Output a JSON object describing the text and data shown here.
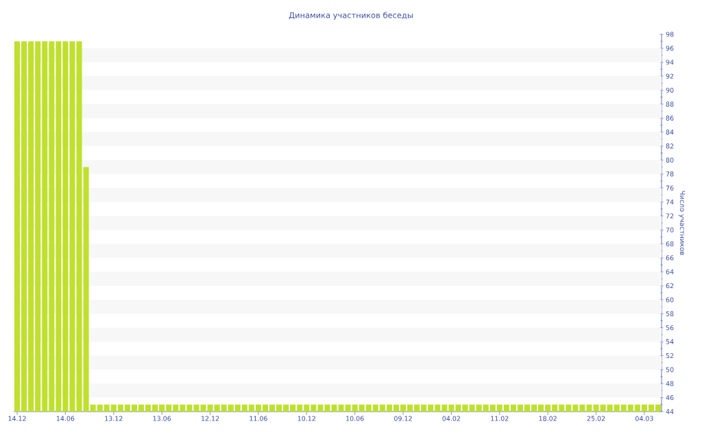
{
  "chart_data": {
    "type": "bar",
    "title": "Динамика участников беседы",
    "ylabel": "Число участников",
    "categories": [
      "14.12",
      null,
      null,
      null,
      null,
      null,
      null,
      "14.06",
      null,
      null,
      null,
      null,
      null,
      null,
      "13.12",
      null,
      null,
      null,
      null,
      null,
      null,
      "13.06",
      null,
      null,
      null,
      null,
      null,
      null,
      "12.12",
      null,
      null,
      null,
      null,
      null,
      null,
      "11.06",
      null,
      null,
      null,
      null,
      null,
      null,
      "10.12",
      null,
      null,
      null,
      null,
      null,
      null,
      "10.06",
      null,
      null,
      null,
      null,
      null,
      null,
      "09.12",
      null,
      null,
      null,
      null,
      null,
      null,
      "04.02",
      null,
      null,
      null,
      null,
      null,
      null,
      "11.02",
      null,
      null,
      null,
      null,
      null,
      null,
      "18.02",
      null,
      null,
      null,
      null,
      null,
      null,
      "25.02",
      null,
      null,
      null,
      null,
      null,
      null,
      "04.03",
      null,
      null
    ],
    "values": [
      97,
      97,
      97,
      97,
      97,
      97,
      97,
      97,
      97,
      97,
      79,
      45,
      45,
      45,
      45,
      45,
      45,
      45,
      45,
      45,
      45,
      45,
      45,
      45,
      45,
      45,
      45,
      45,
      45,
      45,
      45,
      45,
      45,
      45,
      45,
      45,
      45,
      45,
      45,
      45,
      45,
      45,
      45,
      45,
      45,
      45,
      45,
      45,
      45,
      45,
      45,
      45,
      45,
      45,
      45,
      45,
      45,
      45,
      45,
      45,
      45,
      45,
      45,
      45,
      45,
      45,
      45,
      45,
      45,
      45,
      45,
      45,
      45,
      45,
      45,
      45,
      45,
      45,
      45,
      45,
      45,
      45,
      45,
      45,
      45,
      45,
      45,
      45,
      45,
      45,
      45,
      45,
      45,
      45
    ],
    "color": "#bfe02c",
    "ylim": [
      44,
      98
    ],
    "yticks": [
      44,
      46,
      48,
      50,
      52,
      54,
      56,
      58,
      60,
      62,
      64,
      66,
      68,
      70,
      72,
      74,
      76,
      78,
      80,
      82,
      84,
      86,
      88,
      90,
      92,
      94,
      96,
      98
    ],
    "bands": [
      {
        "axis": "y",
        "from": 46,
        "to": 48,
        "color": "#f7f7f7"
      },
      {
        "axis": "y",
        "from": 50,
        "to": 52,
        "color": "#f7f7f7"
      },
      {
        "axis": "y",
        "from": 54,
        "to": 56,
        "color": "#f7f7f7"
      },
      {
        "axis": "y",
        "from": 58,
        "to": 60,
        "color": "#f7f7f7"
      },
      {
        "axis": "y",
        "from": 62,
        "to": 64,
        "color": "#f7f7f7"
      },
      {
        "axis": "y",
        "from": 66,
        "to": 68,
        "color": "#f7f7f7"
      },
      {
        "axis": "y",
        "from": 70,
        "to": 72,
        "color": "#f7f7f7"
      },
      {
        "axis": "y",
        "from": 74,
        "to": 76,
        "color": "#f7f7f7"
      },
      {
        "axis": "y",
        "from": 78,
        "to": 80,
        "color": "#f7f7f7"
      },
      {
        "axis": "y",
        "from": 82,
        "to": 84,
        "color": "#f7f7f7"
      },
      {
        "axis": "y",
        "from": 86,
        "to": 88,
        "color": "#f7f7f7"
      },
      {
        "axis": "y",
        "from": 90,
        "to": 92,
        "color": "#f7f7f7"
      },
      {
        "axis": "y",
        "from": 94,
        "to": 96,
        "color": "#f7f7f7"
      }
    ]
  }
}
